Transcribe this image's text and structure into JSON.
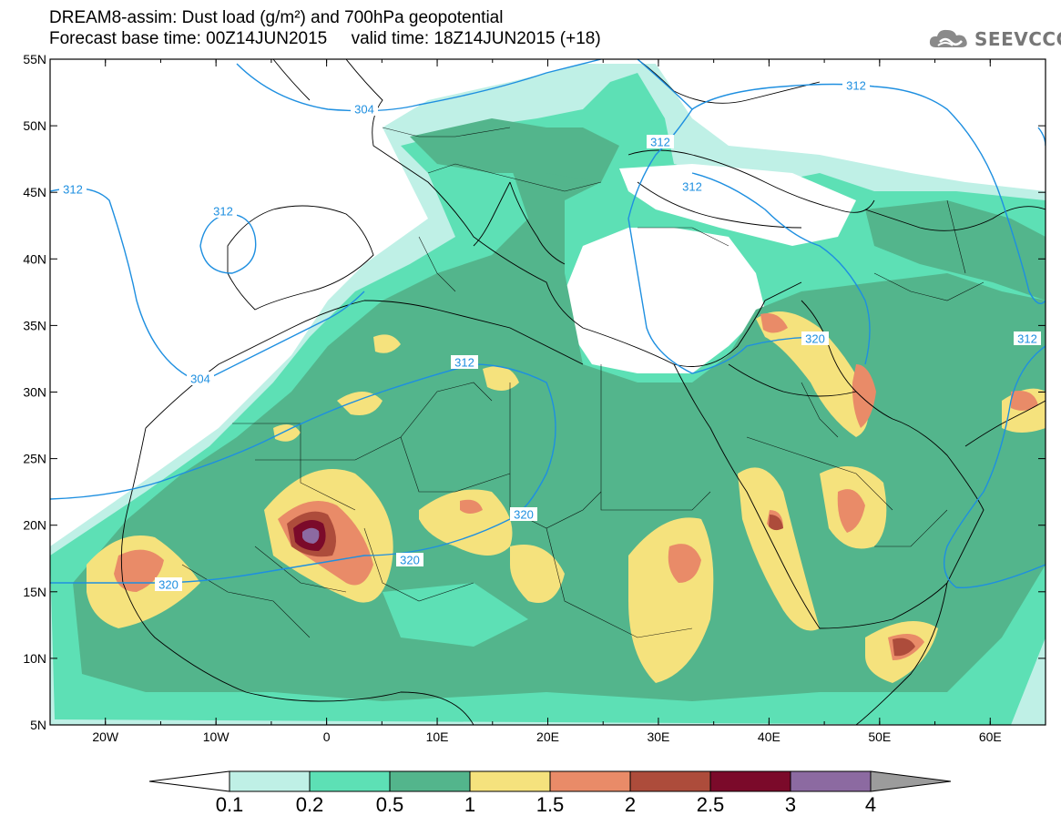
{
  "title": {
    "line1": "DREAM8-assim: Dust load (g/m²) and 700hPa geopotential",
    "line2": "Forecast base time: 00Z14JUN2015     valid time: 18Z14JUN2015 (+18)"
  },
  "logo": {
    "text": "SEEVCCC",
    "icon": "cloud-icon"
  },
  "axes": {
    "lat_labels": [
      "55N",
      "50N",
      "45N",
      "40N",
      "35N",
      "30N",
      "25N",
      "20N",
      "15N",
      "10N",
      "5N"
    ],
    "lon_labels": [
      "20W",
      "10W",
      "0",
      "10E",
      "20E",
      "30E",
      "40E",
      "50E",
      "60E"
    ],
    "lon_range": [
      -25,
      65
    ],
    "lat_range": [
      5,
      55
    ]
  },
  "contours": {
    "labels": [
      "304",
      "312",
      "312",
      "304",
      "312",
      "320",
      "320",
      "320",
      "312",
      "312",
      "312",
      "320",
      "312"
    ]
  },
  "colorbar": {
    "labels": [
      "0.1",
      "0.2",
      "0.5",
      "1",
      "1.5",
      "2",
      "2.5",
      "3",
      "4"
    ],
    "colors": [
      "#ffffff",
      "#bff0e6",
      "#5de0b5",
      "#53b58c",
      "#f5e27d",
      "#e98b68",
      "#ad4c3b",
      "#7b0a2a",
      "#8c6aa1",
      "#9c9c9c"
    ]
  },
  "colors": {
    "contour": "#1e8fe0",
    "border": "#000000"
  }
}
